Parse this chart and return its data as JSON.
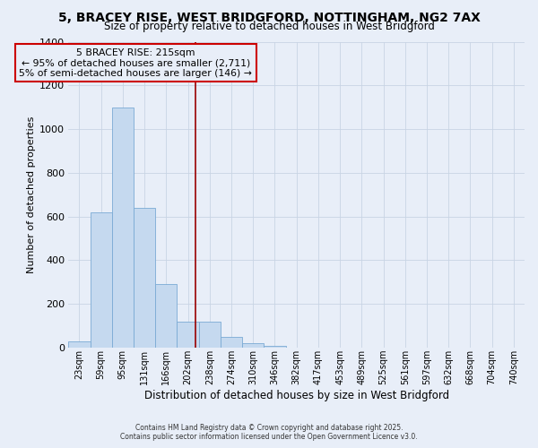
{
  "title": "5, BRACEY RISE, WEST BRIDGFORD, NOTTINGHAM, NG2 7AX",
  "subtitle": "Size of property relative to detached houses in West Bridgford",
  "xlabel": "Distribution of detached houses by size in West Bridgford",
  "ylabel": "Number of detached properties",
  "bar_labels": [
    "23sqm",
    "59sqm",
    "95sqm",
    "131sqm",
    "166sqm",
    "202sqm",
    "238sqm",
    "274sqm",
    "310sqm",
    "346sqm",
    "382sqm",
    "417sqm",
    "453sqm",
    "489sqm",
    "525sqm",
    "561sqm",
    "597sqm",
    "632sqm",
    "668sqm",
    "704sqm",
    "740sqm"
  ],
  "bar_values": [
    30,
    620,
    1100,
    640,
    290,
    120,
    120,
    50,
    20,
    10,
    0,
    0,
    0,
    0,
    0,
    0,
    0,
    0,
    0,
    0,
    0
  ],
  "bar_color": "#c5d9ef",
  "bar_edge_color": "#7aaad4",
  "ylim": [
    0,
    1400
  ],
  "yticks": [
    0,
    200,
    400,
    600,
    800,
    1000,
    1200,
    1400
  ],
  "red_line_x": 5.36,
  "annotation_title": "5 BRACEY RISE: 215sqm",
  "annotation_line1": "← 95% of detached houses are smaller (2,711)",
  "annotation_line2": "5% of semi-detached houses are larger (146) →",
  "footer1": "Contains HM Land Registry data © Crown copyright and database right 2025.",
  "footer2": "Contains public sector information licensed under the Open Government Licence v3.0.",
  "bg_color": "#e8eef8",
  "grid_color": "#c8d4e4"
}
